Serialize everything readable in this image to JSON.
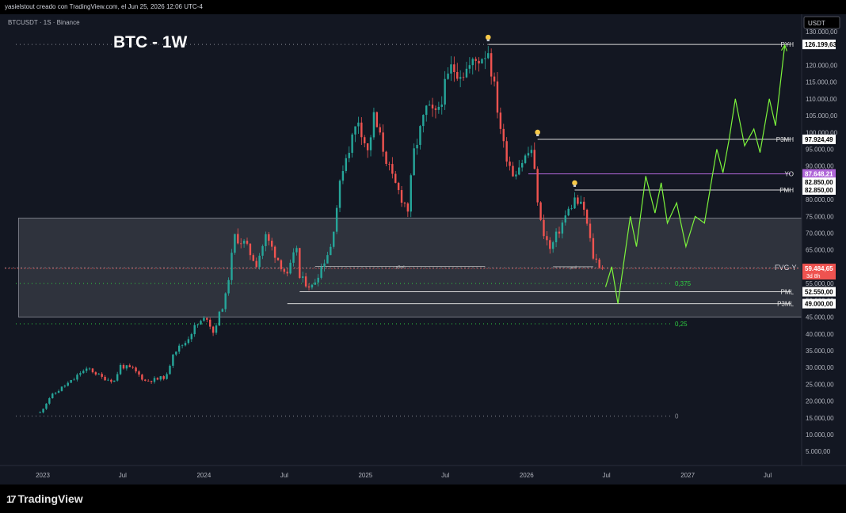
{
  "header": {
    "caption": "yasielstout creado con TradingView.com, el Jun 25, 2026 12:06 UTC-4"
  },
  "symbol": {
    "label": "BTCUSDT · 1S · Binance"
  },
  "chart_title": "BTC - 1W",
  "currency_button": "USDT",
  "footer": {
    "brand": "TradingView"
  },
  "colors": {
    "up": "#26a69a",
    "down": "#ef5350",
    "projection": "#7cf43c",
    "fib": "#2ecc40",
    "yo": "#b067d8",
    "zone": "#3a3d47"
  },
  "icons": [
    "tradingview-logo-icon",
    "lightbulb-icon"
  ],
  "chart_data": {
    "type": "candlestick",
    "timeframe": "1W",
    "ylim": [
      5000,
      135000
    ],
    "x_ticks": [
      "2023",
      "Jul",
      "2024",
      "Jul",
      "2025",
      "Jul",
      "2026",
      "Jul",
      "2027",
      "Jul"
    ],
    "y_ticks": [
      "130.000,00",
      "120.000,00",
      "115.000,00",
      "110.000,00",
      "105.000,00",
      "100.000,00",
      "95.000,00",
      "90.000,00",
      "85.000,00",
      "80.000,00",
      "75.000,00",
      "70.000,00",
      "65.000,00",
      "60.000,00",
      "55.000,00",
      "50.000,00",
      "45.000,00",
      "40.000,00",
      "35.000,00",
      "30.000,00",
      "25.000,00",
      "20.000,00",
      "15.000,00",
      "10.000,00",
      "5.000,00"
    ],
    "price_path": [
      [
        "2022-12-26",
        16500
      ],
      [
        "2023-01-16",
        21000
      ],
      [
        "2023-02-13",
        24000
      ],
      [
        "2023-03-13",
        26500
      ],
      [
        "2023-03-27",
        28500
      ],
      [
        "2023-04-17",
        29500
      ],
      [
        "2023-05-15",
        27000
      ],
      [
        "2023-06-12",
        26000
      ],
      [
        "2023-06-26",
        30500
      ],
      [
        "2023-07-24",
        29500
      ],
      [
        "2023-08-21",
        26000
      ],
      [
        "2023-09-18",
        26500
      ],
      [
        "2023-10-09",
        27500
      ],
      [
        "2023-10-23",
        34500
      ],
      [
        "2023-11-20",
        37500
      ],
      [
        "2023-12-11",
        42000
      ],
      [
        "2024-01-08",
        45000
      ],
      [
        "2024-01-22",
        40500
      ],
      [
        "2024-02-19",
        51000
      ],
      [
        "2024-03-04",
        63000
      ],
      [
        "2024-03-11",
        69000
      ],
      [
        "2024-04-01",
        67000
      ],
      [
        "2024-04-29",
        61000
      ],
      [
        "2024-05-20",
        69000
      ],
      [
        "2024-06-24",
        60500
      ],
      [
        "2024-07-08",
        57000
      ],
      [
        "2024-07-29",
        66000
      ],
      [
        "2024-08-05",
        56500
      ],
      [
        "2024-09-02",
        54000
      ],
      [
        "2024-10-14",
        66000
      ],
      [
        "2024-11-11",
        90000
      ],
      [
        "2024-12-16",
        104000
      ],
      [
        "2025-01-06",
        94000
      ],
      [
        "2025-01-20",
        104500
      ],
      [
        "2025-03-03",
        86000
      ],
      [
        "2025-04-07",
        77000
      ],
      [
        "2025-04-21",
        94000
      ],
      [
        "2025-05-19",
        107000
      ],
      [
        "2025-06-09",
        105000
      ],
      [
        "2025-07-14",
        119000
      ],
      [
        "2025-08-11",
        118000
      ],
      [
        "2025-10-06",
        124500
      ],
      [
        "2025-11-10",
        96000
      ],
      [
        "2025-12-01",
        88000
      ],
      [
        "2026-01-12",
        95000
      ],
      [
        "2026-02-02",
        73000
      ],
      [
        "2026-02-23",
        65000
      ],
      [
        "2026-03-30",
        75000
      ],
      [
        "2026-04-20",
        80000
      ],
      [
        "2026-05-11",
        77000
      ],
      [
        "2026-06-01",
        63000
      ],
      [
        "2026-06-22",
        59484.65
      ]
    ],
    "projection_path": [
      [
        "2026-06-29",
        54000
      ],
      [
        "2026-07-13",
        60000
      ],
      [
        "2026-07-27",
        49000
      ],
      [
        "2026-08-24",
        75000
      ],
      [
        "2026-09-07",
        66000
      ],
      [
        "2026-09-28",
        87000
      ],
      [
        "2026-10-19",
        76000
      ],
      [
        "2026-11-02",
        85000
      ],
      [
        "2026-11-16",
        73000
      ],
      [
        "2026-12-07",
        79000
      ],
      [
        "2026-12-28",
        66000
      ],
      [
        "2027-01-18",
        75000
      ],
      [
        "2027-02-08",
        73000
      ],
      [
        "2027-03-08",
        95000
      ],
      [
        "2027-03-22",
        88000
      ],
      [
        "2027-04-05",
        98000
      ],
      [
        "2027-04-19",
        110000
      ],
      [
        "2027-05-10",
        96000
      ],
      [
        "2027-05-31",
        101000
      ],
      [
        "2027-06-14",
        94000
      ],
      [
        "2027-07-05",
        110000
      ],
      [
        "2027-07-19",
        102000
      ],
      [
        "2027-08-09",
        126000
      ]
    ],
    "levels": [
      {
        "label": "PYH",
        "value": 126199.63,
        "price_label": "126.199,63",
        "start": "2025-10-06"
      },
      {
        "label": "P3MH",
        "value": 97924.49,
        "price_label": "97.924,49",
        "start": "2026-01-26"
      },
      {
        "label": "YO",
        "value": 87648.21,
        "price_label": "87.648,21",
        "start": "2026-01-05"
      },
      {
        "label": "PMH",
        "value": 82850,
        "price_label": "82.850,00",
        "start": "2026-04-20"
      },
      {
        "label": "PML",
        "value": 52550,
        "price_label": "52.550,00",
        "start": "2024-08-05"
      },
      {
        "label": "P3ML",
        "value": 49000,
        "price_label": "49.000,00",
        "start": "2024-07-08"
      }
    ],
    "extra_price_label": "82.850,00",
    "current_price": {
      "value": 59484.65,
      "label": "59.484,65",
      "countdown": "3d 8h"
    },
    "fvg_zone": {
      "label": "FVG-Y",
      "from": "2022-11-07",
      "to": "2027-11-15",
      "low": 45000,
      "high": 74500,
      "mid": 59700
    },
    "fib_lines": [
      {
        "label": "0,375",
        "value": 55000
      },
      {
        "label": "0,25",
        "value": 43000
      },
      {
        "label": "0",
        "value": 15500
      }
    ],
    "markers": [
      {
        "label": "p3ml",
        "value": 60100,
        "from": "2024-09-09",
        "to": "2025-09-29"
      },
      {
        "label": "pml",
        "value": 60000,
        "from": "2026-03-02",
        "to": "2026-06-01"
      }
    ],
    "alerts": [
      {
        "date": "2025-10-06",
        "value": 126199.63
      },
      {
        "date": "2026-01-26",
        "value": 97924.49
      },
      {
        "date": "2026-04-20",
        "value": 82850
      }
    ]
  }
}
